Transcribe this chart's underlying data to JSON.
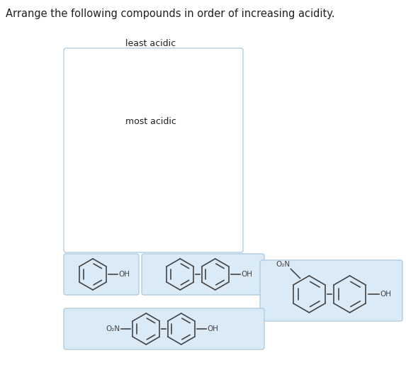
{
  "title": "Arrange the following compounds in order of increasing acidity.",
  "title_fontsize": 10.5,
  "bg_color": "#ffffff",
  "box_color": "#daeaf7",
  "box_edge_color": "#b0cce0",
  "least_acidic_label": "least acidic",
  "most_acidic_label": "most acidic",
  "line_color": "#444444",
  "text_color": "#222222",
  "lw": 1.2,
  "ring_fontsize": 7.5
}
